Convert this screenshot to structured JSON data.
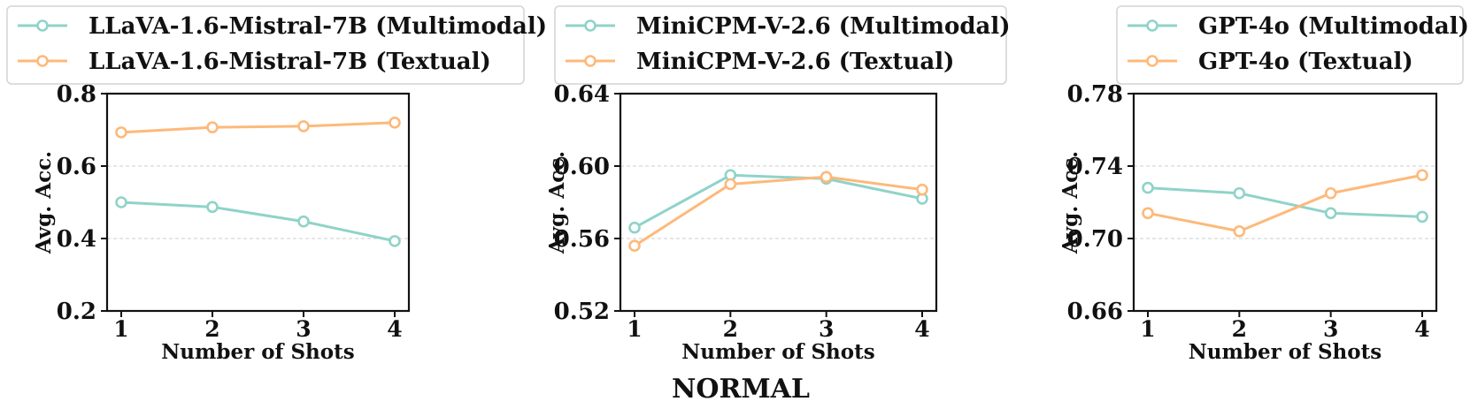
{
  "figure_title": "NORMAL",
  "colors": {
    "multimodal": "#8fd3c9",
    "textual": "#fdb97a",
    "grid": "#cccccc",
    "axis": "#111111"
  },
  "chart_data": [
    {
      "type": "line",
      "xlabel": "Number of Shots",
      "ylabel": "Avg. Acc.",
      "x": [
        1,
        2,
        3,
        4
      ],
      "x_tick_labels": [
        "1",
        "2",
        "3",
        "4"
      ],
      "ylim": [
        0.2,
        0.8
      ],
      "y_ticks": [
        0.2,
        0.4,
        0.6,
        0.8
      ],
      "y_tick_labels": [
        "0.2",
        "0.4",
        "0.6",
        "0.8"
      ],
      "grid": "horizontal dashed",
      "legend_location": "above plot",
      "series": [
        {
          "name": "LLaVA-1.6-Mistral-7B (Multimodal)",
          "color": "#8fd3c9",
          "values": [
            0.5,
            0.487,
            0.447,
            0.393
          ]
        },
        {
          "name": "LLaVA-1.6-Mistral-7B (Textual)",
          "color": "#fdb97a",
          "values": [
            0.693,
            0.707,
            0.71,
            0.72
          ]
        }
      ]
    },
    {
      "type": "line",
      "xlabel": "Number of Shots",
      "ylabel": "Avg. Acc.",
      "x": [
        1,
        2,
        3,
        4
      ],
      "x_tick_labels": [
        "1",
        "2",
        "3",
        "4"
      ],
      "ylim": [
        0.52,
        0.64
      ],
      "y_ticks": [
        0.52,
        0.56,
        0.6,
        0.64
      ],
      "y_tick_labels": [
        "0.52",
        "0.56",
        "0.60",
        "0.64"
      ],
      "grid": "horizontal dashed",
      "legend_location": "above plot",
      "series": [
        {
          "name": "MiniCPM-V-2.6 (Multimodal)",
          "color": "#8fd3c9",
          "values": [
            0.566,
            0.595,
            0.593,
            0.582
          ]
        },
        {
          "name": "MiniCPM-V-2.6 (Textual)",
          "color": "#fdb97a",
          "values": [
            0.556,
            0.59,
            0.594,
            0.587
          ]
        }
      ]
    },
    {
      "type": "line",
      "xlabel": "Number of Shots",
      "ylabel": "Avg. Acc.",
      "x": [
        1,
        2,
        3,
        4
      ],
      "x_tick_labels": [
        "1",
        "2",
        "3",
        "4"
      ],
      "ylim": [
        0.66,
        0.78
      ],
      "y_ticks": [
        0.66,
        0.7,
        0.74,
        0.78
      ],
      "y_tick_labels": [
        "0.66",
        "0.70",
        "0.74",
        "0.78"
      ],
      "grid": "horizontal dashed",
      "legend_location": "above plot",
      "series": [
        {
          "name": "GPT-4o (Multimodal)",
          "color": "#8fd3c9",
          "values": [
            0.728,
            0.725,
            0.714,
            0.712
          ]
        },
        {
          "name": "GPT-4o (Textual)",
          "color": "#fdb97a",
          "values": [
            0.714,
            0.704,
            0.725,
            0.735
          ]
        }
      ]
    }
  ]
}
